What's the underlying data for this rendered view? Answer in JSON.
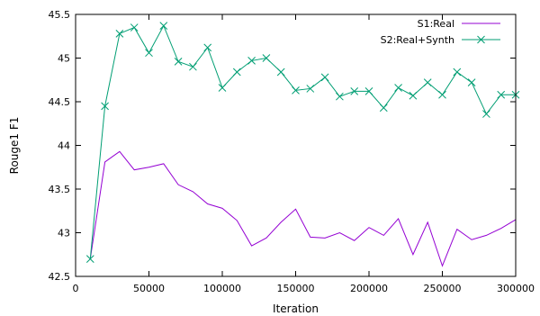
{
  "chart_data": {
    "type": "line",
    "title": "",
    "xlabel": "Iteration",
    "ylabel": "Rouge1 F1",
    "xlim": [
      0,
      300000
    ],
    "ylim": [
      42.5,
      45.5
    ],
    "xticks": [
      0,
      50000,
      100000,
      150000,
      200000,
      250000,
      300000
    ],
    "xtick_labels": [
      "0",
      "50000",
      "100000",
      "150000",
      "200000",
      "250000",
      "300000"
    ],
    "yticks": [
      42.5,
      43,
      43.5,
      44,
      44.5,
      45,
      45.5
    ],
    "ytick_labels": [
      "42.5",
      "43",
      "43.5",
      "44",
      "44.5",
      "45",
      "45.5"
    ],
    "grid": false,
    "legend_position": "top-right",
    "x": [
      10000,
      20000,
      30000,
      40000,
      50000,
      60000,
      70000,
      80000,
      90000,
      100000,
      110000,
      120000,
      130000,
      140000,
      150000,
      160000,
      170000,
      180000,
      190000,
      200000,
      210000,
      220000,
      230000,
      240000,
      250000,
      260000,
      270000,
      280000,
      290000,
      300000
    ],
    "series": [
      {
        "name": "S1:Real",
        "color": "#9400d3",
        "marker": "none",
        "values": [
          42.7,
          43.81,
          43.93,
          43.72,
          43.75,
          43.79,
          43.55,
          43.47,
          43.33,
          43.28,
          43.14,
          42.85,
          42.94,
          43.12,
          43.27,
          42.95,
          42.94,
          43.0,
          42.91,
          43.06,
          42.97,
          43.16,
          42.75,
          43.12,
          42.62,
          43.04,
          42.92,
          42.97,
          43.05,
          43.15
        ]
      },
      {
        "name": "S2:Real+Synth",
        "color": "#009e73",
        "marker": "x",
        "values": [
          42.7,
          44.45,
          45.28,
          45.35,
          45.06,
          45.37,
          44.96,
          44.9,
          45.12,
          44.66,
          44.84,
          44.97,
          45.0,
          44.84,
          44.63,
          44.65,
          44.78,
          44.56,
          44.62,
          44.62,
          44.43,
          44.66,
          44.57,
          44.72,
          44.58,
          44.84,
          44.72,
          44.36,
          44.58,
          44.58
        ]
      }
    ]
  }
}
